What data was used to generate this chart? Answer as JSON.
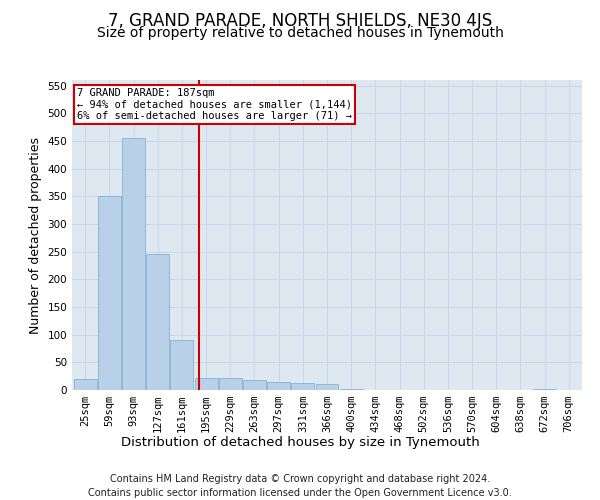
{
  "title": "7, GRAND PARADE, NORTH SHIELDS, NE30 4JS",
  "subtitle": "Size of property relative to detached houses in Tynemouth",
  "xlabel": "Distribution of detached houses by size in Tynemouth",
  "ylabel": "Number of detached properties",
  "categories": [
    "25sqm",
    "59sqm",
    "93sqm",
    "127sqm",
    "161sqm",
    "195sqm",
    "229sqm",
    "263sqm",
    "297sqm",
    "331sqm",
    "366sqm",
    "400sqm",
    "434sqm",
    "468sqm",
    "502sqm",
    "536sqm",
    "570sqm",
    "604sqm",
    "638sqm",
    "672sqm",
    "706sqm"
  ],
  "values": [
    20,
    350,
    455,
    245,
    90,
    22,
    22,
    18,
    15,
    12,
    10,
    2,
    0,
    0,
    0,
    0,
    0,
    0,
    0,
    2,
    0
  ],
  "bar_color": "#b8d0e8",
  "bar_edge_color": "#7aaad0",
  "grid_color": "#c8d8ea",
  "background_color": "#dde8f0",
  "vline_color": "#cc0000",
  "annotation_line1": "7 GRAND PARADE: 187sqm",
  "annotation_line2": "← 94% of detached houses are smaller (1,144)",
  "annotation_line3": "6% of semi-detached houses are larger (71) →",
  "annotation_box_facecolor": "#ffffff",
  "annotation_box_edgecolor": "#cc0000",
  "ylim": [
    0,
    560
  ],
  "yticks": [
    0,
    50,
    100,
    150,
    200,
    250,
    300,
    350,
    400,
    450,
    500,
    550
  ],
  "footer": "Contains HM Land Registry data © Crown copyright and database right 2024.\nContains public sector information licensed under the Open Government Licence v3.0.",
  "title_fontsize": 12,
  "subtitle_fontsize": 10,
  "xlabel_fontsize": 9.5,
  "ylabel_fontsize": 9,
  "tick_fontsize": 7.5,
  "footer_fontsize": 7,
  "annotation_fontsize": 7.5,
  "vline_x_index": 4.72
}
